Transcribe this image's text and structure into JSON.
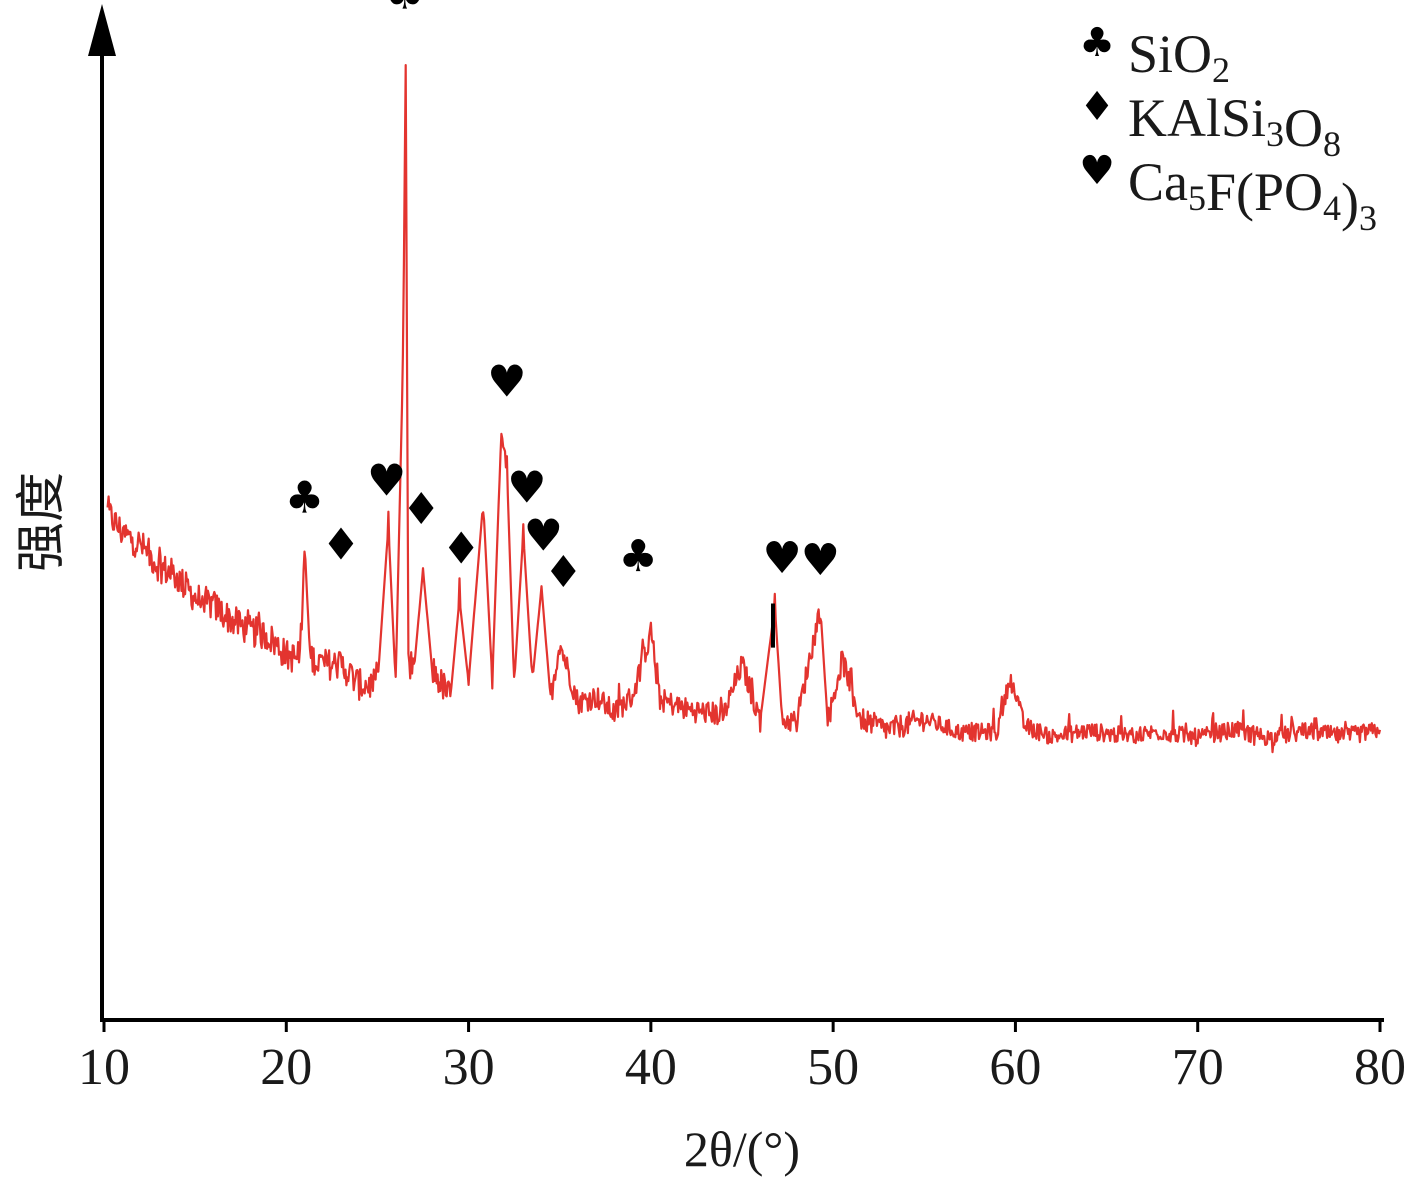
{
  "chart_data": {
    "type": "line",
    "title": "",
    "xlabel": "2θ/(°)",
    "ylabel": "强度",
    "xlim": [
      10,
      80
    ],
    "ylim": [
      0,
      100
    ],
    "y_ticks_shown": false,
    "grid": false,
    "legend_position": "top-right",
    "x_ticks": [
      10,
      20,
      30,
      40,
      50,
      60,
      70,
      80
    ],
    "series": [
      {
        "color": "#e3342f",
        "points": [
          [
            10.2,
            51.8
          ],
          [
            11.0,
            49.7
          ],
          [
            12.0,
            48.5
          ],
          [
            13.0,
            46.3
          ],
          [
            14.0,
            45.2
          ],
          [
            15.0,
            43.1
          ],
          [
            16.0,
            42.3
          ],
          [
            17.0,
            40.8
          ],
          [
            18.0,
            39.7
          ],
          [
            19.0,
            39.2
          ],
          [
            20.0,
            37.2
          ],
          [
            20.8,
            36.8
          ],
          [
            21.0,
            49.0
          ],
          [
            21.3,
            37.1
          ],
          [
            22.0,
            36.3
          ],
          [
            23.0,
            36.3
          ],
          [
            24.0,
            34.2
          ],
          [
            25.0,
            34.2
          ],
          [
            25.6,
            50.4
          ],
          [
            26.0,
            34.5
          ],
          [
            26.4,
            66.7
          ],
          [
            26.55,
            97.9
          ],
          [
            26.7,
            35.9
          ],
          [
            27.0,
            35.6
          ],
          [
            27.5,
            46.0
          ],
          [
            28.0,
            35.8
          ],
          [
            29.0,
            32.9
          ],
          [
            29.5,
            42.9
          ],
          [
            30.0,
            34.5
          ],
          [
            30.8,
            52.8
          ],
          [
            31.3,
            34.7
          ],
          [
            31.8,
            60.3
          ],
          [
            32.1,
            56.4
          ],
          [
            32.5,
            34.3
          ],
          [
            33.0,
            49.6
          ],
          [
            33.5,
            34.6
          ],
          [
            34.0,
            44.2
          ],
          [
            34.5,
            32.8
          ],
          [
            35.0,
            38.5
          ],
          [
            36.0,
            32.4
          ],
          [
            37.0,
            33.0
          ],
          [
            38.0,
            31.3
          ],
          [
            39.0,
            33.1
          ],
          [
            40.0,
            39.6
          ],
          [
            40.5,
            32.7
          ],
          [
            42.0,
            31.7
          ],
          [
            44.0,
            31.1
          ],
          [
            45.0,
            36.3
          ],
          [
            46.0,
            30.6
          ],
          [
            46.8,
            42.3
          ],
          [
            47.2,
            30.6
          ],
          [
            48.0,
            30.5
          ],
          [
            49.3,
            42.1
          ],
          [
            49.7,
            30.4
          ],
          [
            50.5,
            36.8
          ],
          [
            51.5,
            30.7
          ],
          [
            53.0,
            29.6
          ],
          [
            55.0,
            30.7
          ],
          [
            57.0,
            29.3
          ],
          [
            59.0,
            29.4
          ],
          [
            59.7,
            34.9
          ],
          [
            60.5,
            30.0
          ],
          [
            62.0,
            28.9
          ],
          [
            64.0,
            29.5
          ],
          [
            66.0,
            29.0
          ],
          [
            68.0,
            29.4
          ],
          [
            70.0,
            28.8
          ],
          [
            72.0,
            29.6
          ],
          [
            74.0,
            28.8
          ],
          [
            76.0,
            29.5
          ],
          [
            78.0,
            28.9
          ],
          [
            80.0,
            29.6
          ]
        ]
      }
    ],
    "legend": [
      {
        "marker": "club",
        "formula_parts": [
          {
            "t": "SiO"
          },
          {
            "t": "2",
            "sub": true
          }
        ]
      },
      {
        "marker": "diamond",
        "formula_parts": [
          {
            "t": "KAlSi"
          },
          {
            "t": "3",
            "sub": true
          },
          {
            "t": "O"
          },
          {
            "t": "8",
            "sub": true
          }
        ]
      },
      {
        "marker": "heart",
        "formula_parts": [
          {
            "t": "Ca"
          },
          {
            "t": "5",
            "sub": true
          },
          {
            "t": "F(PO"
          },
          {
            "t": "4",
            "sub": true
          },
          {
            "t": ")"
          },
          {
            "t": "3",
            "sub": true
          }
        ]
      }
    ],
    "peak_markers": [
      {
        "marker": "club",
        "x": 21.0,
        "y": 51.8
      },
      {
        "marker": "diamond",
        "x": 23.0,
        "y": 47.0
      },
      {
        "marker": "heart",
        "x": 25.5,
        "y": 53.5
      },
      {
        "marker": "diamond",
        "x": 27.4,
        "y": 50.6
      },
      {
        "marker": "club",
        "x": 26.5,
        "y": 103.2
      },
      {
        "marker": "diamond",
        "x": 29.6,
        "y": 46.6
      },
      {
        "marker": "heart",
        "x": 32.1,
        "y": 63.6
      },
      {
        "marker": "heart",
        "x": 33.2,
        "y": 52.8
      },
      {
        "marker": "heart",
        "x": 34.1,
        "y": 47.9
      },
      {
        "marker": "diamond",
        "x": 35.2,
        "y": 44.2
      },
      {
        "marker": "club",
        "x": 39.3,
        "y": 45.8
      },
      {
        "marker": "heart",
        "x": 47.2,
        "y": 45.6
      },
      {
        "marker": "heart",
        "x": 49.3,
        "y": 45.4
      }
    ],
    "highlight_lines": [
      {
        "x": 46.7,
        "y_low": 38.0,
        "y_high": 42.5,
        "color": "#000000"
      }
    ]
  }
}
